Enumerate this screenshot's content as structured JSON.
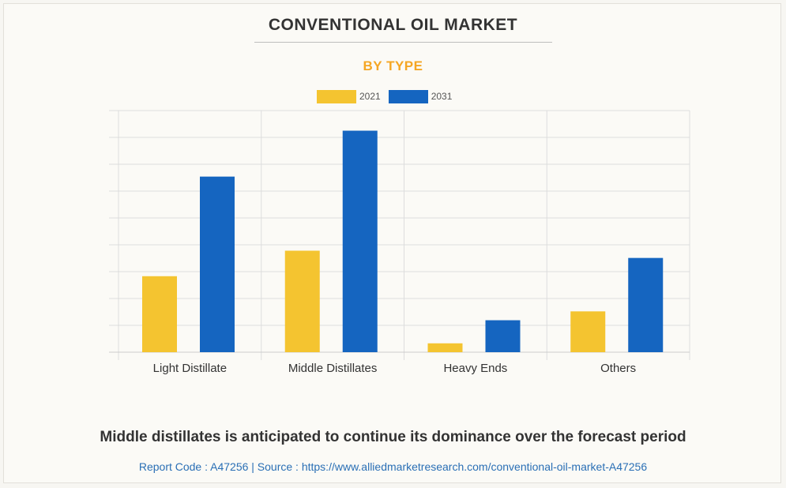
{
  "header": {
    "title": "CONVENTIONAL OIL MARKET",
    "subtitle": "BY TYPE"
  },
  "colors": {
    "series_2021": "#f4c430",
    "series_2031": "#1565c0",
    "subtitle": "#f5a623",
    "grid": "#dddddd"
  },
  "chart_data": {
    "type": "bar",
    "categories": [
      "Light Distillate",
      "Middle Distillates",
      "Heavy Ends",
      "Others"
    ],
    "series": [
      {
        "name": "2021",
        "values": [
          28.3,
          37.8,
          3.3,
          15.2
        ]
      },
      {
        "name": "2031",
        "values": [
          65.4,
          82.5,
          11.9,
          35.1
        ]
      }
    ],
    "ylim": [
      0,
      90
    ],
    "grid": true,
    "legend": "top-center",
    "title": "CONVENTIONAL OIL MARKET",
    "subtitle": "BY TYPE"
  },
  "footer": {
    "caption": "Middle distillates is anticipated to continue its dominance over the forecast period",
    "source": "Report Code : A47256  |  Source : https://www.alliedmarketresearch.com/conventional-oil-market-A47256"
  }
}
